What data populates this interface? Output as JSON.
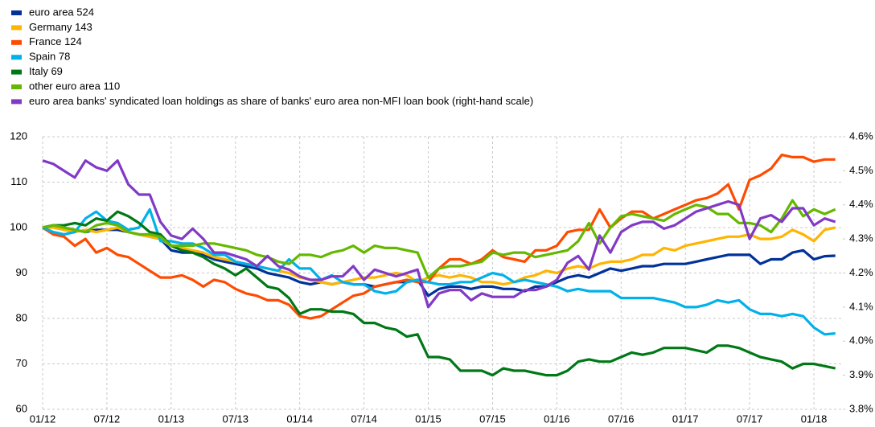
{
  "chart_data": {
    "type": "line",
    "categories": [
      "01/12",
      null,
      null,
      null,
      null,
      null,
      "07/12",
      null,
      null,
      null,
      null,
      null,
      "01/13",
      null,
      null,
      null,
      null,
      null,
      "07/13",
      null,
      null,
      null,
      null,
      null,
      "01/14",
      null,
      null,
      null,
      null,
      null,
      "07/14",
      null,
      null,
      null,
      null,
      null,
      "01/15",
      null,
      null,
      null,
      null,
      null,
      "07/15",
      null,
      null,
      null,
      null,
      null,
      "01/16",
      null,
      null,
      null,
      null,
      null,
      "07/16",
      null,
      null,
      null,
      null,
      null,
      "01/17",
      null,
      null,
      null,
      null,
      null,
      "07/17",
      null,
      null,
      null,
      null,
      null,
      "01/18",
      null,
      null
    ],
    "ylim": [
      60,
      120
    ],
    "yticks": [
      60,
      70,
      80,
      90,
      100,
      110,
      120
    ],
    "y2lim": [
      3.8,
      4.6
    ],
    "y2ticks": [
      {
        "value": 3.8,
        "label": "3.8%"
      },
      {
        "value": 3.9,
        "label": "3.9%"
      },
      {
        "value": 4.0,
        "label": "4.0%"
      },
      {
        "value": 4.1,
        "label": "4.1%"
      },
      {
        "value": 4.2,
        "label": "4.2%"
      },
      {
        "value": 4.3,
        "label": "4.3%"
      },
      {
        "value": 4.4,
        "label": "4.4%"
      },
      {
        "value": 4.5,
        "label": "4.5%"
      },
      {
        "value": 4.6,
        "label": "4.6%"
      }
    ],
    "grid": true,
    "legend": "top-left",
    "series": [
      {
        "name": "euro area 524",
        "color": "#003299",
        "values": [
          100,
          100.5,
          100,
          99.5,
          99,
          99.5,
          99.5,
          99.5,
          99,
          98.5,
          98,
          97.5,
          95,
          94.5,
          94.5,
          94,
          93,
          92.5,
          92,
          91.5,
          91,
          90,
          89.5,
          89,
          88,
          87.5,
          88,
          87.5,
          88,
          87.5,
          87.5,
          87,
          87.5,
          88,
          88,
          88.5,
          85,
          86.5,
          87,
          87,
          86.5,
          87,
          87,
          86.5,
          86.5,
          86,
          87,
          87,
          88,
          89,
          89.5,
          89,
          90,
          91,
          90.5,
          91,
          91.5,
          91.5,
          92,
          92,
          92,
          92.5,
          93,
          93.5,
          94,
          94,
          94,
          92,
          93,
          93,
          94.5,
          95,
          93,
          93.7,
          93.8
        ]
      },
      {
        "name": "Germany 143",
        "color": "#ffb400",
        "values": [
          100,
          100,
          99.5,
          99,
          99.5,
          99,
          99.5,
          100,
          99,
          98.5,
          98,
          97.5,
          96,
          95.5,
          95,
          94.5,
          93.5,
          93,
          92.5,
          92,
          91.5,
          91,
          90.5,
          90,
          89,
          88.5,
          88,
          87.5,
          88,
          88.5,
          89,
          89,
          89.5,
          90,
          89.5,
          88,
          89,
          89.5,
          89,
          89.5,
          89,
          88,
          88,
          87.5,
          88,
          89,
          89.5,
          90.5,
          90,
          91,
          91.5,
          91,
          92,
          92.5,
          92.5,
          93,
          94,
          94,
          95.5,
          95,
          96,
          96.5,
          97,
          97.5,
          98,
          98,
          98.5,
          97.5,
          97.5,
          98,
          99.5,
          98.5,
          97,
          99.5,
          100
        ]
      },
      {
        "name": "France 124",
        "color": "#ff4b00",
        "values": [
          100,
          98.5,
          98,
          96,
          97.5,
          94.5,
          95.5,
          94,
          93.5,
          92,
          90.5,
          89,
          89,
          89.5,
          88.5,
          87,
          88.5,
          88,
          86.5,
          85.5,
          85,
          84,
          84,
          83,
          80.5,
          80,
          80.5,
          82,
          83.5,
          85,
          85.5,
          87,
          87.5,
          88,
          88.5,
          88,
          88,
          91,
          93,
          93,
          92,
          93,
          95,
          93.5,
          93,
          92.5,
          95,
          95,
          96,
          99,
          99.5,
          99.5,
          104,
          100,
          102,
          103.5,
          103.5,
          102,
          103,
          104,
          105,
          106,
          106.5,
          107.5,
          109.5,
          104,
          110.5,
          111.5,
          113,
          116,
          115.5,
          115.5,
          114.5,
          115,
          115
        ]
      },
      {
        "name": "Spain 78",
        "color": "#00b1ea",
        "values": [
          100,
          99,
          98.5,
          99,
          102,
          103.5,
          101.5,
          101,
          99.5,
          100,
          104,
          97,
          97,
          96.5,
          96.5,
          95.5,
          94,
          94,
          92.5,
          92,
          91.5,
          91,
          90.5,
          93,
          91,
          91,
          88.5,
          89.5,
          88,
          87.5,
          87.5,
          86,
          85.5,
          86,
          88,
          88.5,
          88,
          87.5,
          87.5,
          88,
          88,
          89,
          90,
          89.5,
          88,
          88.5,
          88,
          87.5,
          87,
          86,
          86.5,
          86,
          86,
          86,
          84.5,
          84.5,
          84.5,
          84.5,
          84,
          83.5,
          82.5,
          82.5,
          83,
          84,
          83.5,
          84,
          82,
          81,
          81,
          80.5,
          81,
          80.5,
          78,
          76.5,
          76.7
        ]
      },
      {
        "name": "Italy 69",
        "color": "#007816",
        "values": [
          100,
          100.5,
          100.5,
          101,
          100.5,
          102,
          101.5,
          103.5,
          102.5,
          101,
          99,
          98.5,
          96,
          95,
          94.5,
          93.5,
          92,
          91,
          89.5,
          91,
          89,
          87,
          86.5,
          84.5,
          81,
          82,
          82,
          81.5,
          81.5,
          81,
          79,
          79,
          78,
          77.5,
          76,
          76.5,
          71.5,
          71.5,
          71,
          68.5,
          68.5,
          68.5,
          67.5,
          69,
          68.5,
          68.5,
          68,
          67.5,
          67.5,
          68.5,
          70.5,
          71,
          70.5,
          70.5,
          71.5,
          72.5,
          72,
          72.5,
          73.5,
          73.5,
          73.5,
          73,
          72.5,
          74,
          74,
          73.5,
          72.5,
          71.5,
          71,
          70.5,
          69,
          70,
          70,
          69.5,
          69
        ]
      },
      {
        "name": "other euro area 110",
        "color": "#65b800",
        "values": [
          100,
          100.5,
          100,
          99.5,
          99,
          100.5,
          101,
          100.5,
          99,
          98.5,
          98.5,
          98,
          96,
          96,
          96,
          96.5,
          96.5,
          96,
          95.5,
          95,
          94,
          93.5,
          92.5,
          92,
          94,
          94,
          93.5,
          94.5,
          95,
          96,
          94.5,
          96,
          95.5,
          95.5,
          95,
          94.5,
          89,
          91,
          91.5,
          91.5,
          92,
          92.5,
          94.5,
          94,
          94.5,
          94.5,
          93.5,
          94,
          94.5,
          95,
          97,
          101,
          96.5,
          100,
          102.5,
          103,
          102.5,
          102,
          101.5,
          103,
          104,
          105,
          104.5,
          103,
          103,
          101,
          101,
          100.5,
          99,
          102,
          106,
          102.5,
          104,
          103,
          104
        ]
      },
      {
        "name": "euro area banks' syndicated loan holdings as share of banks' euro area non-MFI loan book (right-hand scale)",
        "color": "#8139c6",
        "axis": "y2",
        "values": [
          4.53,
          4.52,
          4.5,
          4.48,
          4.53,
          4.51,
          4.5,
          4.53,
          4.46,
          4.43,
          4.43,
          4.35,
          4.31,
          4.3,
          4.33,
          4.3,
          4.26,
          4.26,
          4.25,
          4.24,
          4.22,
          4.25,
          4.22,
          4.21,
          4.19,
          4.18,
          4.18,
          4.19,
          4.19,
          4.22,
          4.18,
          4.21,
          4.2,
          4.19,
          4.2,
          4.21,
          4.1,
          4.14,
          4.15,
          4.15,
          4.12,
          4.14,
          4.13,
          4.13,
          4.13,
          4.15,
          4.15,
          4.16,
          4.18,
          4.23,
          4.25,
          4.21,
          4.31,
          4.26,
          4.32,
          4.34,
          4.35,
          4.35,
          4.33,
          4.34,
          4.36,
          4.38,
          4.39,
          4.4,
          4.41,
          4.4,
          4.3,
          4.36,
          4.37,
          4.35,
          4.39,
          4.39,
          4.34,
          4.36,
          4.35
        ]
      }
    ]
  }
}
